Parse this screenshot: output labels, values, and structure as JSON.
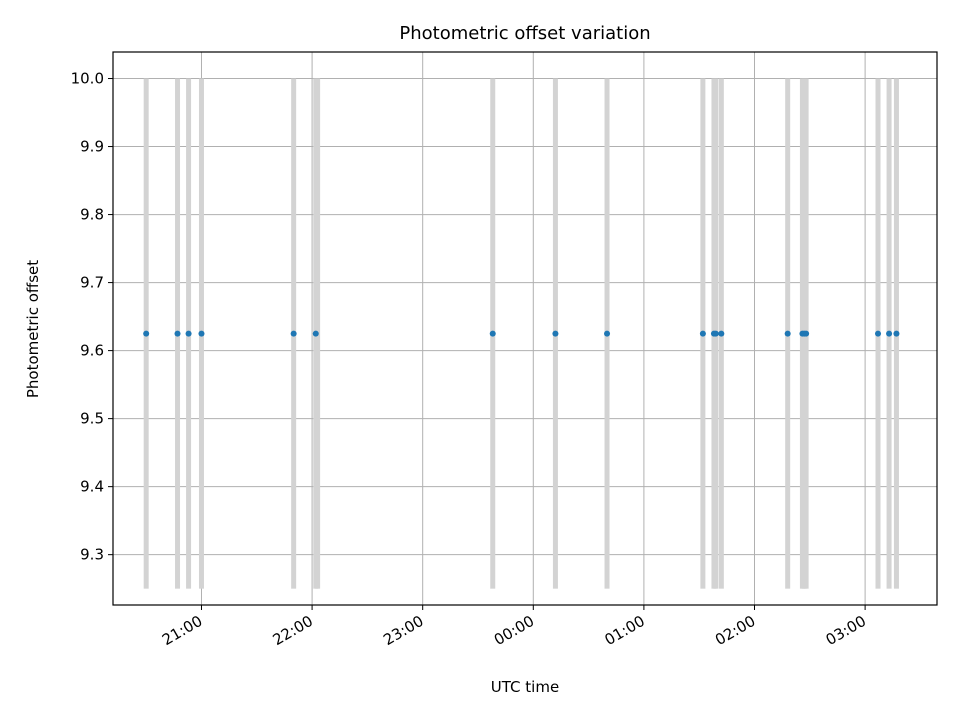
{
  "chart_data": {
    "type": "scatter",
    "title": "Photometric offset variation",
    "xlabel": "UTC time",
    "ylabel": "Photometric offset",
    "x_axis": {
      "type": "time",
      "min": "20:12",
      "max": "03:39",
      "next_day_after": "23:59",
      "ticks": [
        "21:00",
        "22:00",
        "23:00",
        "00:00",
        "01:00",
        "02:00",
        "03:00"
      ]
    },
    "ylim": [
      9.226,
      10.039
    ],
    "yticks": [
      "9.3",
      "9.4",
      "9.5",
      "9.6",
      "9.7",
      "9.8",
      "9.9",
      "10.0"
    ],
    "grid": true,
    "marker_color": "#1f77b4",
    "band_color": "#d3d3d3",
    "bands": {
      "y_range": [
        9.25,
        10.0
      ],
      "x": [
        "20:30",
        "20:47",
        "20:53",
        "21:00",
        "21:50",
        "22:02",
        "22:03",
        "23:38",
        "00:12",
        "00:40",
        "01:32",
        "01:38",
        "01:39",
        "01:42",
        "02:18",
        "02:26",
        "02:27",
        "02:28",
        "03:07",
        "03:13",
        "03:17"
      ]
    },
    "series": [
      {
        "color": "#1f77b4",
        "x": [
          "20:30",
          "20:47",
          "20:53",
          "21:00",
          "21:50",
          "22:02",
          "23:38",
          "00:12",
          "00:40",
          "01:32",
          "01:38",
          "01:39",
          "01:42",
          "02:18",
          "02:26",
          "02:27",
          "02:28",
          "03:07",
          "03:13",
          "03:17"
        ],
        "y": [
          9.625,
          9.625,
          9.625,
          9.625,
          9.625,
          9.625,
          9.625,
          9.625,
          9.625,
          9.625,
          9.625,
          9.625,
          9.625,
          9.625,
          9.625,
          9.625,
          9.625,
          9.625,
          9.625,
          9.625
        ]
      }
    ]
  }
}
